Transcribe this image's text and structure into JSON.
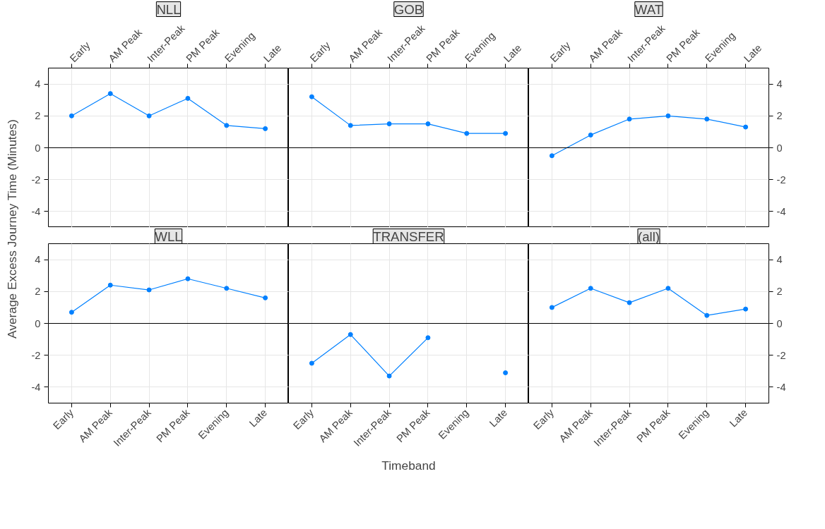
{
  "chart_data": [
    {
      "type": "line",
      "title": "NLL",
      "ylabel": "Average Excess Journey Time (Minutes)",
      "categories": [
        "Early",
        "AM Peak",
        "Inter-Peak",
        "PM Peak",
        "Evening",
        "Late"
      ],
      "series": [
        {
          "color": "#0080ff",
          "values": [
            2.0,
            3.4,
            2.0,
            3.1,
            1.4,
            1.2
          ]
        }
      ],
      "ylim": [
        -5,
        5
      ],
      "yticks": [
        -4,
        -2,
        0,
        2,
        4
      ],
      "grid": true,
      "marker": "circle",
      "ref_lines": [
        {
          "axis": "y",
          "value": 0
        }
      ]
    },
    {
      "type": "line",
      "title": "GOB",
      "categories": [
        "Early",
        "AM Peak",
        "Inter-Peak",
        "PM Peak",
        "Evening",
        "Late"
      ],
      "series": [
        {
          "color": "#0080ff",
          "values": [
            3.2,
            1.4,
            1.5,
            1.5,
            0.9,
            0.9
          ]
        }
      ],
      "ylim": [
        -5,
        5
      ],
      "yticks": [
        -4,
        -2,
        0,
        2,
        4
      ],
      "grid": true,
      "marker": "circle",
      "tick_labels": "x",
      "ref_lines": [
        {
          "axis": "y",
          "value": 0
        }
      ]
    },
    {
      "type": "line",
      "title": "WAT",
      "categories": [
        "Early",
        "AM Peak",
        "Inter-Peak",
        "PM Peak",
        "Evening",
        "Late"
      ],
      "series": [
        {
          "color": "#0080ff",
          "values": [
            -0.5,
            0.8,
            1.8,
            2.0,
            1.8,
            1.3
          ]
        }
      ],
      "ylim": [
        -5,
        5
      ],
      "yticks": [
        -4,
        -2,
        0,
        2,
        4
      ],
      "grid": true,
      "marker": "circle",
      "ref_lines": [
        {
          "axis": "y",
          "value": 0
        }
      ]
    },
    {
      "type": "line",
      "title": "WLL",
      "categories": [
        "Early",
        "AM Peak",
        "Inter-Peak",
        "PM Peak",
        "Evening",
        "Late"
      ],
      "series": [
        {
          "color": "#0080ff",
          "values": [
            0.7,
            2.4,
            2.1,
            2.8,
            2.2,
            1.6
          ]
        }
      ],
      "ylim": [
        -5,
        5
      ],
      "yticks": [
        -4,
        -2,
        0,
        2,
        4
      ],
      "grid": true,
      "marker": "circle",
      "ref_lines": [
        {
          "axis": "y",
          "value": 0
        }
      ]
    },
    {
      "type": "line",
      "title": "TRANSFER",
      "xlabel": "Timeband",
      "categories": [
        "Early",
        "AM Peak",
        "Inter-Peak",
        "PM Peak",
        "Evening",
        "Late"
      ],
      "series": [
        {
          "color": "#0080ff",
          "values": [
            -2.5,
            -0.7,
            -3.3,
            -0.9,
            null,
            -3.1
          ]
        }
      ],
      "ylim": [
        -5,
        5
      ],
      "yticks": [
        -4,
        -2,
        0,
        2,
        4
      ],
      "grid": true,
      "marker": "circle",
      "tick_labels": "x",
      "ref_lines": [
        {
          "axis": "y",
          "value": 0
        }
      ]
    },
    {
      "type": "line",
      "title": "(all)",
      "categories": [
        "Early",
        "AM Peak",
        "Inter-Peak",
        "PM Peak",
        "Evening",
        "Late"
      ],
      "series": [
        {
          "color": "#0080ff",
          "values": [
            1.0,
            2.2,
            1.3,
            2.2,
            0.5,
            0.9
          ]
        }
      ],
      "ylim": [
        -5,
        5
      ],
      "yticks": [
        -4,
        -2,
        0,
        2,
        4
      ],
      "grid": true,
      "marker": "circle",
      "ref_lines": [
        {
          "axis": "y",
          "value": 0
        }
      ]
    }
  ]
}
